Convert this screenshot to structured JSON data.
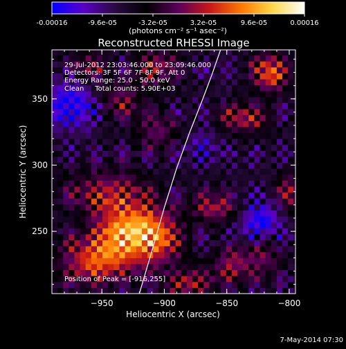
{
  "colorbar": {
    "tick_labels": [
      "-0.00016",
      "-9.6e-05",
      "-3.2e-05",
      "3.2e-05",
      "9.6e-05",
      "0.00016"
    ],
    "units_label": "(photons cm⁻² s⁻¹ asec⁻²)",
    "range": [
      -0.00016,
      0.00016
    ],
    "colormap": [
      "#0000ff",
      "#5a00c8",
      "#2a0a40",
      "#000000",
      "#5a005a",
      "#c81818",
      "#ff7800",
      "#ffd84a",
      "#ffffff"
    ]
  },
  "chart_data": {
    "type": "heatmap",
    "title": "Reconstructed RHESSI Image",
    "xlabel": "Heliocentric X (arcsec)",
    "ylabel": "Heliocentric Y (arcsec)",
    "xlim": [
      -990,
      -795
    ],
    "ylim": [
      203,
      387
    ],
    "xticks": [
      -950,
      -900,
      -850,
      -800
    ],
    "yticks": [
      250,
      300,
      350
    ],
    "xtick_labels": [
      "−950",
      "−900",
      "−850",
      "−800"
    ],
    "ytick_labels": [
      "250",
      "300",
      "350"
    ],
    "annotations": [
      "29-Jul-2012 23:03:46.000 to 23:09:46.000",
      "Detectors: 3F 5F 6F 7F 8F 9F, Att 0",
      "Energy Range: 25.0 - 50.0 keV",
      "Clean     Total counts: 5.90E+03"
    ],
    "peak_label": "Position of Peak = [-916,255]",
    "peak": [
      -916,
      255
    ],
    "limb_curve": [
      [
        -920,
        203
      ],
      [
        -910,
        235
      ],
      [
        -900,
        268
      ],
      [
        -890,
        298
      ],
      [
        -880,
        324
      ],
      [
        -870,
        348
      ],
      [
        -862,
        368
      ],
      [
        -855,
        387
      ]
    ],
    "features": [
      {
        "x": -930,
        "y": 250,
        "amp": 0.95,
        "sx": 18,
        "sy": 14
      },
      {
        "x": -955,
        "y": 228,
        "amp": 0.75,
        "sx": 20,
        "sy": 12
      },
      {
        "x": -905,
        "y": 245,
        "amp": 0.6,
        "sx": 14,
        "sy": 16
      },
      {
        "x": -945,
        "y": 280,
        "amp": 0.55,
        "sx": 22,
        "sy": 12
      },
      {
        "x": -815,
        "y": 370,
        "amp": 0.8,
        "sx": 10,
        "sy": 10
      },
      {
        "x": -835,
        "y": 335,
        "amp": 0.55,
        "sx": 14,
        "sy": 8
      },
      {
        "x": -860,
        "y": 268,
        "amp": 0.55,
        "sx": 12,
        "sy": 8
      },
      {
        "x": -800,
        "y": 280,
        "amp": 0.5,
        "sx": 8,
        "sy": 10
      },
      {
        "x": -845,
        "y": 225,
        "amp": 0.5,
        "sx": 12,
        "sy": 10
      },
      {
        "x": -880,
        "y": 210,
        "amp": 0.5,
        "sx": 12,
        "sy": 8
      },
      {
        "x": -905,
        "y": 375,
        "amp": 0.5,
        "sx": 12,
        "sy": 10
      },
      {
        "x": -960,
        "y": 375,
        "amp": 0.4,
        "sx": 10,
        "sy": 8
      },
      {
        "x": -935,
        "y": 350,
        "amp": 0.45,
        "sx": 12,
        "sy": 10
      },
      {
        "x": -905,
        "y": 325,
        "amp": 0.4,
        "sx": 12,
        "sy": 10
      },
      {
        "x": -820,
        "y": 235,
        "amp": 0.5,
        "sx": 10,
        "sy": 12
      },
      {
        "x": -975,
        "y": 345,
        "amp": -0.6,
        "sx": 14,
        "sy": 12
      },
      {
        "x": -822,
        "y": 255,
        "amp": -0.6,
        "sx": 12,
        "sy": 12
      },
      {
        "x": -870,
        "y": 315,
        "amp": -0.3,
        "sx": 10,
        "sy": 8
      }
    ]
  },
  "footer": {
    "date_stamp": "7-May-2014 07:30"
  }
}
